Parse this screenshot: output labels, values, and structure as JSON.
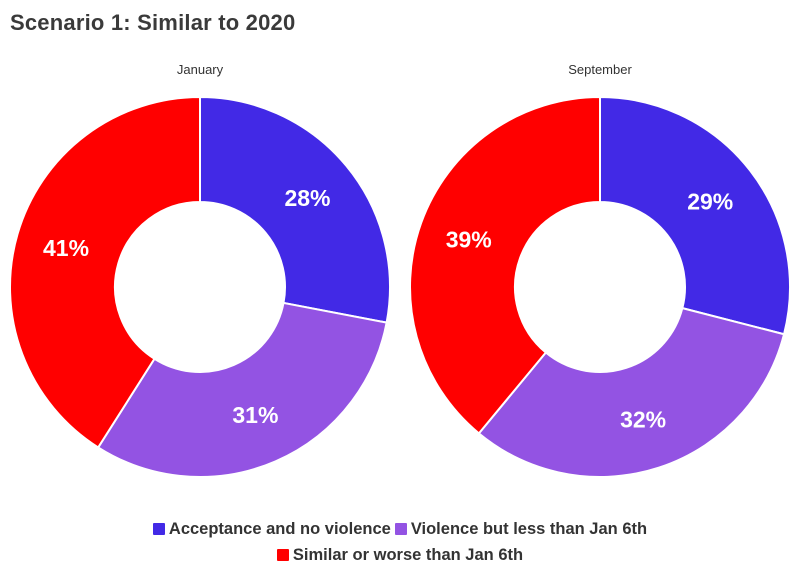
{
  "title": "Scenario 1: Similar to 2020",
  "chart_data": [
    {
      "type": "pie",
      "subtitle": "January",
      "slices": [
        {
          "label": "Acceptance and no violence",
          "value": 28,
          "text": "28%",
          "color": "#4229e6"
        },
        {
          "label": "Violence but less than Jan 6th",
          "value": 31,
          "text": "31%",
          "color": "#9353e3"
        },
        {
          "label": "Similar or worse than Jan 6th",
          "value": 41,
          "text": "41%",
          "color": "#ff0000"
        }
      ]
    },
    {
      "type": "pie",
      "subtitle": "September",
      "slices": [
        {
          "label": "Acceptance and no violence",
          "value": 29,
          "text": "29%",
          "color": "#4229e6"
        },
        {
          "label": "Violence but less than Jan 6th",
          "value": 32,
          "text": "32%",
          "color": "#9353e3"
        },
        {
          "label": "Similar or worse than Jan 6th",
          "value": 39,
          "text": "39%",
          "color": "#ff0000"
        }
      ]
    }
  ],
  "legend": {
    "row1": [
      {
        "label": "Acceptance and no violence",
        "color": "#4229e6"
      },
      {
        "label": "Violence but less than Jan 6th",
        "color": "#9353e3"
      }
    ],
    "row2": [
      {
        "label": "Similar or worse than Jan 6th",
        "color": "#ff0000"
      }
    ]
  }
}
